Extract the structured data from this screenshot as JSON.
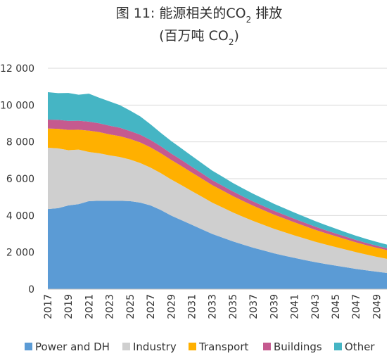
{
  "chart_data": {
    "type": "area",
    "stacked": true,
    "title_prefix": "图 11: 能源相关的CO",
    "title_sub": "2",
    "title_suffix": " 排放",
    "subtitle_prefix": "(百万吨 CO",
    "subtitle_sub": "2",
    "subtitle_suffix": ")",
    "ylim": [
      0,
      12000
    ],
    "yticks": [
      0,
      2000,
      4000,
      6000,
      8000,
      10000,
      12000
    ],
    "ytick_labels": [
      "0",
      "2 000",
      "4 000",
      "6 000",
      "8 000",
      "10 000",
      "12 000"
    ],
    "xtick_labels": [
      "2017",
      "2019",
      "2021",
      "2023",
      "2025",
      "2027",
      "2029",
      "2031",
      "2033",
      "2035",
      "2037",
      "2039",
      "2041",
      "2043",
      "2045",
      "2047",
      "2049"
    ],
    "gridlines": true,
    "legend_position": "bottom",
    "x": [
      2017,
      2018,
      2019,
      2020,
      2021,
      2022,
      2023,
      2024,
      2025,
      2026,
      2027,
      2028,
      2029,
      2030,
      2031,
      2032,
      2033,
      2034,
      2035,
      2036,
      2037,
      2038,
      2039,
      2040,
      2041,
      2042,
      2043,
      2044,
      2045,
      2046,
      2047,
      2048,
      2049,
      2050
    ],
    "series": [
      {
        "name": "Power and DH",
        "color": "#5b9bd5",
        "values": [
          4350,
          4400,
          4550,
          4620,
          4780,
          4800,
          4800,
          4800,
          4780,
          4700,
          4550,
          4300,
          4000,
          3750,
          3500,
          3250,
          3000,
          2800,
          2600,
          2420,
          2250,
          2100,
          1950,
          1820,
          1700,
          1580,
          1470,
          1370,
          1280,
          1190,
          1100,
          1020,
          950,
          880
        ]
      },
      {
        "name": "Industry",
        "color": "#cfcfcf",
        "values": [
          3330,
          3250,
          3000,
          2960,
          2670,
          2580,
          2470,
          2380,
          2260,
          2150,
          2050,
          2000,
          1960,
          1900,
          1830,
          1770,
          1700,
          1640,
          1570,
          1510,
          1450,
          1390,
          1330,
          1280,
          1220,
          1170,
          1110,
          1060,
          1010,
          960,
          910,
          860,
          810,
          770
        ]
      },
      {
        "name": "Transport",
        "color": "#ffb000",
        "values": [
          1050,
          1060,
          1100,
          1080,
          1160,
          1150,
          1140,
          1130,
          1120,
          1120,
          1100,
          1080,
          1060,
          1040,
          1010,
          980,
          950,
          920,
          890,
          860,
          830,
          800,
          770,
          740,
          710,
          680,
          650,
          620,
          590,
          560,
          530,
          510,
          490,
          470
        ]
      },
      {
        "name": "Buildings",
        "color": "#c55a8f",
        "values": [
          480,
          490,
          490,
          490,
          490,
          480,
          470,
          460,
          430,
          420,
          400,
          380,
          350,
          330,
          310,
          290,
          270,
          260,
          250,
          240,
          230,
          220,
          210,
          200,
          190,
          180,
          170,
          160,
          150,
          140,
          130,
          120,
          110,
          100
        ]
      },
      {
        "name": "Other",
        "color": "#45b5c4",
        "values": [
          1490,
          1450,
          1520,
          1410,
          1520,
          1390,
          1320,
          1230,
          1110,
          990,
          850,
          730,
          680,
          630,
          590,
          550,
          520,
          490,
          460,
          440,
          420,
          400,
          380,
          360,
          340,
          320,
          300,
          280,
          260,
          240,
          230,
          220,
          210,
          200
        ]
      }
    ]
  }
}
